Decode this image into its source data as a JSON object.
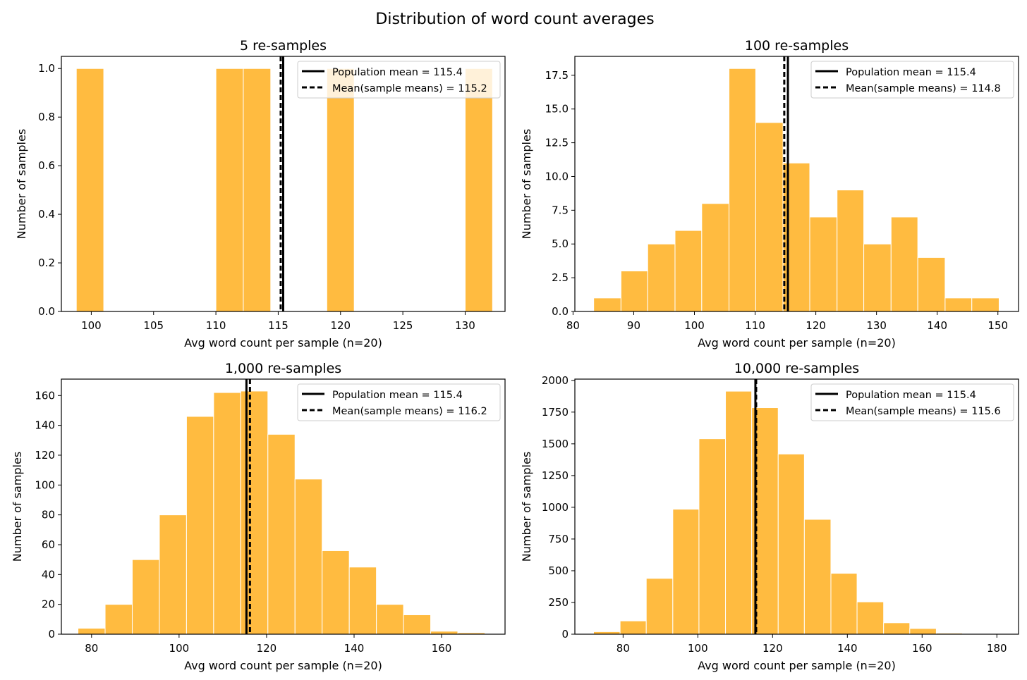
{
  "suptitle": "Distribution of word count averages",
  "colors": {
    "bar": "#FFBB40",
    "bar_edge": "#ffffff",
    "line": "#000000"
  },
  "chart_data": [
    {
      "type": "bar",
      "title": "5 re-samples",
      "xlabel": "Avg word count per sample (n=20)",
      "ylabel": "Number of samples",
      "xlim": [
        97.6,
        133.2
      ],
      "ylim": [
        0,
        1.05
      ],
      "xticks": [
        100,
        105,
        110,
        115,
        120,
        125,
        130
      ],
      "yticks": [
        0.0,
        0.2,
        0.4,
        0.6,
        0.8,
        1.0
      ],
      "ytick_decimals": 1,
      "bins": [
        [
          98.8,
          101.0,
          1
        ],
        [
          110.0,
          112.2,
          1
        ],
        [
          112.2,
          114.4,
          1
        ],
        [
          118.9,
          121.1,
          1
        ],
        [
          130.0,
          132.2,
          1
        ]
      ],
      "population_mean": 115.4,
      "sample_means_mean": 115.2,
      "legend": {
        "location": "upper right",
        "entries": [
          "Population mean = 115.4",
          "Mean(sample means) = 115.2"
        ]
      }
    },
    {
      "type": "bar",
      "title": "100 re-samples",
      "xlabel": "Avg word count per sample (n=20)",
      "ylabel": "Number of samples",
      "xlim": [
        80.3,
        153.4
      ],
      "ylim": [
        0,
        18.9
      ],
      "xticks": [
        80,
        90,
        100,
        110,
        120,
        130,
        140,
        150
      ],
      "yticks": [
        0.0,
        2.5,
        5.0,
        7.5,
        10.0,
        12.5,
        15.0,
        17.5
      ],
      "ytick_decimals": 1,
      "bins": [
        [
          83.4,
          87.9,
          1
        ],
        [
          87.9,
          92.3,
          3
        ],
        [
          92.3,
          96.8,
          5
        ],
        [
          96.8,
          101.2,
          6
        ],
        [
          101.2,
          105.7,
          8
        ],
        [
          105.7,
          110.1,
          18
        ],
        [
          110.1,
          114.6,
          14
        ],
        [
          114.6,
          119.0,
          11
        ],
        [
          119.0,
          123.5,
          7
        ],
        [
          123.5,
          127.9,
          9
        ],
        [
          127.9,
          132.4,
          5
        ],
        [
          132.4,
          136.8,
          7
        ],
        [
          136.8,
          141.3,
          4
        ],
        [
          141.3,
          145.7,
          1
        ],
        [
          145.7,
          150.2,
          1
        ]
      ],
      "population_mean": 115.4,
      "sample_means_mean": 114.8,
      "legend": {
        "location": "upper right",
        "entries": [
          "Population mean = 115.4",
          "Mean(sample means) = 114.8"
        ]
      }
    },
    {
      "type": "bar",
      "title": "1,000 re-samples",
      "xlabel": "Avg word count per sample (n=20)",
      "ylabel": "Number of samples",
      "xlim": [
        73.1,
        174.5
      ],
      "ylim": [
        0,
        171
      ],
      "xticks": [
        80,
        100,
        120,
        140,
        160
      ],
      "yticks": [
        0,
        20,
        40,
        60,
        80,
        100,
        120,
        140,
        160
      ],
      "ytick_decimals": 0,
      "bins": [
        [
          76.9,
          83.1,
          4
        ],
        [
          83.1,
          89.3,
          20
        ],
        [
          89.3,
          95.5,
          50
        ],
        [
          95.5,
          101.7,
          80
        ],
        [
          101.7,
          107.9,
          146
        ],
        [
          107.9,
          114.1,
          162
        ],
        [
          114.1,
          120.3,
          163
        ],
        [
          120.3,
          126.5,
          134
        ],
        [
          126.5,
          132.7,
          104
        ],
        [
          132.7,
          138.9,
          56
        ],
        [
          138.9,
          145.1,
          45
        ],
        [
          145.1,
          151.3,
          20
        ],
        [
          151.3,
          157.5,
          13
        ],
        [
          157.5,
          163.7,
          2
        ],
        [
          163.7,
          169.9,
          1
        ]
      ],
      "population_mean": 115.4,
      "sample_means_mean": 116.2,
      "legend": {
        "location": "upper right",
        "entries": [
          "Population mean = 115.4",
          "Mean(sample means) = 116.2"
        ]
      }
    },
    {
      "type": "bar",
      "title": "10,000 re-samples",
      "xlabel": "Avg word count per sample (n=20)",
      "ylabel": "Number of samples",
      "xlim": [
        67.1,
        185.8
      ],
      "ylim": [
        0,
        2010
      ],
      "xticks": [
        80,
        100,
        120,
        140,
        160,
        180
      ],
      "yticks": [
        0,
        250,
        500,
        750,
        1000,
        1250,
        1500,
        1750,
        2000
      ],
      "ytick_decimals": 0,
      "bins": [
        [
          72.1,
          79.2,
          20
        ],
        [
          79.2,
          86.2,
          105
        ],
        [
          86.2,
          93.3,
          440
        ],
        [
          93.3,
          100.3,
          985
        ],
        [
          100.3,
          107.4,
          1540
        ],
        [
          107.4,
          114.4,
          1915
        ],
        [
          114.4,
          121.5,
          1785
        ],
        [
          121.5,
          128.5,
          1420
        ],
        [
          128.5,
          135.6,
          905
        ],
        [
          135.6,
          142.6,
          480
        ],
        [
          142.6,
          149.7,
          255
        ],
        [
          149.7,
          156.7,
          90
        ],
        [
          156.7,
          163.8,
          45
        ],
        [
          163.8,
          170.8,
          8
        ],
        [
          170.8,
          177.9,
          3
        ]
      ],
      "population_mean": 115.4,
      "sample_means_mean": 115.6,
      "legend": {
        "location": "upper right",
        "entries": [
          "Population mean = 115.4",
          "Mean(sample means) = 115.6"
        ]
      }
    }
  ]
}
